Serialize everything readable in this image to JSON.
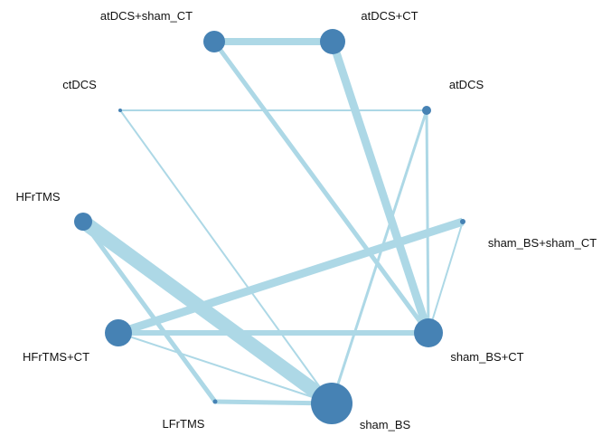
{
  "colors": {
    "edge": "#add8e6",
    "node": "#4682b4",
    "label": "#111111"
  },
  "nodes": [
    {
      "id": "atDCS+sham_CT",
      "label": "atDCS+sham_CT"
    },
    {
      "id": "atDCS+CT",
      "label": "atDCS+CT"
    },
    {
      "id": "ctDCS",
      "label": "ctDCS"
    },
    {
      "id": "atDCS",
      "label": "atDCS"
    },
    {
      "id": "HFrTMS",
      "label": "HFrTMS"
    },
    {
      "id": "sham_BS+sham_CT",
      "label": "sham_BS+sham_CT"
    },
    {
      "id": "HFrTMS+CT",
      "label": "HFrTMS+CT"
    },
    {
      "id": "sham_BS+CT",
      "label": "sham_BS+CT"
    },
    {
      "id": "LFrTMS",
      "label": "LFrTMS"
    },
    {
      "id": "sham_BS",
      "label": "sham_BS"
    }
  ],
  "edges": [
    {
      "from": "atDCS+sham_CT",
      "to": "atDCS+CT"
    },
    {
      "from": "atDCS+sham_CT",
      "to": "sham_BS+CT"
    },
    {
      "from": "atDCS+CT",
      "to": "sham_BS+CT"
    },
    {
      "from": "ctDCS",
      "to": "atDCS"
    },
    {
      "from": "ctDCS",
      "to": "sham_BS"
    },
    {
      "from": "atDCS",
      "to": "sham_BS+CT"
    },
    {
      "from": "atDCS",
      "to": "sham_BS"
    },
    {
      "from": "HFrTMS",
      "to": "sham_BS"
    },
    {
      "from": "HFrTMS",
      "to": "LFrTMS"
    },
    {
      "from": "HFrTMS+CT",
      "to": "sham_BS+sham_CT"
    },
    {
      "from": "HFrTMS+CT",
      "to": "sham_BS+CT"
    },
    {
      "from": "HFrTMS+CT",
      "to": "sham_BS"
    },
    {
      "from": "sham_BS+sham_CT",
      "to": "sham_BS+CT"
    },
    {
      "from": "LFrTMS",
      "to": "sham_BS"
    }
  ]
}
